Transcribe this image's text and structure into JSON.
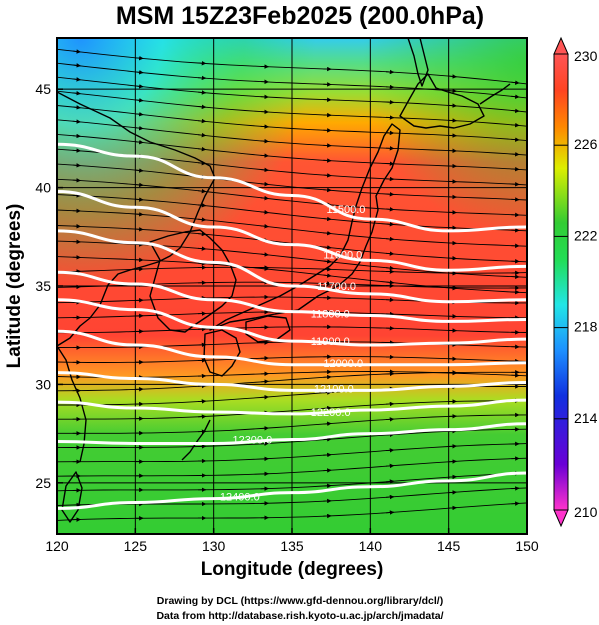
{
  "title": "MSM 15Z23Feb2025 (200.0hPa)",
  "xlabel": "Longitude (degrees)",
  "ylabel": "Latitude  (degrees)",
  "footer": {
    "line1": "Drawing by DCL (https://www.gfd-dennou.org/library/dcl/)",
    "line2": "Data from http://database.rish.kyoto-u.ac.jp/arch/jmadata/"
  },
  "chart_data": {
    "type": "heatmap",
    "xlim": [
      120,
      150
    ],
    "ylim": [
      22.4,
      47.6
    ],
    "x_ticks": [
      "120",
      "125",
      "130",
      "135",
      "140",
      "145",
      "150"
    ],
    "y_ticks": [
      "25",
      "30",
      "35",
      "40",
      "45"
    ],
    "grid": true,
    "shading": "temperature",
    "colorbar": {
      "min": 210,
      "max": 230,
      "tick_labels": [
        "230",
        "226",
        "222",
        "218",
        "214",
        "210"
      ],
      "colors": [
        "#ff33cc",
        "#6a00d6",
        "#1030e0",
        "#1e90ff",
        "#22e6e6",
        "#22dd55",
        "#33cc33",
        "#ddee00",
        "#ff8800",
        "#ff4422",
        "#ff5555"
      ]
    },
    "contours": [
      {
        "label": "11500.0",
        "points": [
          [
            120,
            42.2
          ],
          [
            125,
            41.6
          ],
          [
            130,
            40.5
          ],
          [
            135,
            39.6
          ],
          [
            140,
            38.4
          ],
          [
            145,
            37.8
          ],
          [
            150,
            38.0
          ]
        ],
        "label_at": [
          137.2,
          38.9
        ]
      },
      {
        "label": "11600.0",
        "points": [
          [
            120,
            39.8
          ],
          [
            125,
            39.0
          ],
          [
            130,
            38.0
          ],
          [
            135,
            37.1
          ],
          [
            140,
            36.3
          ],
          [
            145,
            35.8
          ],
          [
            150,
            36.0
          ]
        ],
        "label_at": [
          137.0,
          36.6
        ]
      },
      {
        "label": "11700.0",
        "points": [
          [
            120,
            37.8
          ],
          [
            125,
            37.2
          ],
          [
            130,
            36.2
          ],
          [
            135,
            35.0
          ],
          [
            140,
            34.6
          ],
          [
            145,
            34.2
          ],
          [
            150,
            34.3
          ]
        ],
        "label_at": [
          136.6,
          35.0
        ]
      },
      {
        "label": "11800.0",
        "points": [
          [
            120,
            35.7
          ],
          [
            125,
            35.1
          ],
          [
            130,
            34.3
          ],
          [
            135,
            33.7
          ],
          [
            140,
            33.5
          ],
          [
            145,
            33.2
          ],
          [
            150,
            33.3
          ]
        ],
        "label_at": [
          136.2,
          33.6
        ]
      },
      {
        "label": "11900.0",
        "points": [
          [
            120,
            34.3
          ],
          [
            125,
            33.8
          ],
          [
            130,
            32.9
          ],
          [
            135,
            32.2
          ],
          [
            140,
            32.0
          ],
          [
            145,
            32.1
          ],
          [
            150,
            32.3
          ]
        ],
        "label_at": [
          136.2,
          32.2
        ]
      },
      {
        "label": "12000.0",
        "points": [
          [
            120,
            32.7
          ],
          [
            125,
            32.0
          ],
          [
            130,
            31.4
          ],
          [
            135,
            31.0
          ],
          [
            140,
            31.0
          ],
          [
            145,
            31.0
          ],
          [
            150,
            31.1
          ]
        ],
        "label_at": [
          137.0,
          31.1
        ]
      },
      {
        "label": "12100.0",
        "points": [
          [
            120,
            30.6
          ],
          [
            125,
            30.3
          ],
          [
            130,
            30.0
          ],
          [
            135,
            29.7
          ],
          [
            140,
            29.7
          ],
          [
            145,
            29.9
          ],
          [
            150,
            30.1
          ]
        ],
        "label_at": [
          136.4,
          29.8
        ]
      },
      {
        "label": "12200.0",
        "points": [
          [
            120,
            29.1
          ],
          [
            125,
            28.8
          ],
          [
            130,
            28.6
          ],
          [
            135,
            28.5
          ],
          [
            140,
            28.7
          ],
          [
            145,
            28.9
          ],
          [
            150,
            29.2
          ]
        ],
        "label_at": [
          136.2,
          28.6
        ]
      },
      {
        "label": "12300.0",
        "points": [
          [
            120,
            27.1
          ],
          [
            125,
            27.0
          ],
          [
            130,
            27.0
          ],
          [
            135,
            27.2
          ],
          [
            140,
            27.5
          ],
          [
            145,
            27.7
          ],
          [
            150,
            28.0
          ]
        ],
        "label_at": [
          131.2,
          27.2
        ]
      },
      {
        "label": "12400.0",
        "points": [
          [
            120,
            23.7
          ],
          [
            125,
            24.0
          ],
          [
            130,
            24.2
          ],
          [
            135,
            24.5
          ],
          [
            140,
            24.8
          ],
          [
            145,
            25.1
          ],
          [
            150,
            25.5
          ]
        ],
        "label_at": [
          130.4,
          24.3
        ]
      }
    ]
  }
}
